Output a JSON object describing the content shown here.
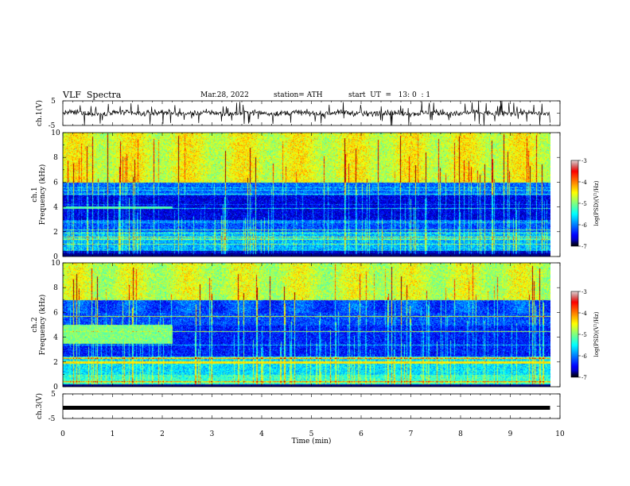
{
  "header": {
    "title": "VLF  Spectra",
    "date": "Mar.28, 2022",
    "station": "station= ATH",
    "start": "start  UT  =   13: 0  : 1"
  },
  "chart_data": [
    {
      "type": "line",
      "panel": "ch1-waveform",
      "ylabel": "ch.1(V)",
      "yticks": [
        "5",
        "-5"
      ],
      "ylim": [
        -5,
        5
      ],
      "xlim": [
        0,
        10
      ],
      "data_end_min": 9.8,
      "baseline_v": 0,
      "color": "#000000"
    },
    {
      "type": "heatmap",
      "panel": "ch1-spectrogram",
      "ylabel_line1": "ch.1",
      "ylabel_line2": "Frequency  (kHz)",
      "yticks": [
        "10",
        "8",
        "6",
        "4",
        "2",
        "0"
      ],
      "ylim": [
        0,
        10
      ],
      "xlim": [
        0,
        10
      ],
      "data_end_min": 9.8,
      "colorbar": {
        "label": "log(PSD)(V²/Hz)",
        "ticks": [
          "-3",
          "-4",
          "-5",
          "-6",
          "-7"
        ],
        "range": [
          -7,
          -3
        ]
      },
      "bands": [
        {
          "f_range": [
            6.0,
            10.0
          ],
          "log_psd": -4.6
        },
        {
          "f_range": [
            5.0,
            6.0
          ],
          "log_psd": -6.1
        },
        {
          "f_range": [
            3.0,
            5.0
          ],
          "log_psd": -6.6
        },
        {
          "f_range": [
            2.0,
            3.0
          ],
          "log_psd": -6.2
        },
        {
          "f_range": [
            0.5,
            2.0
          ],
          "log_psd": -5.8
        },
        {
          "f_range": [
            0.0,
            0.5
          ],
          "log_psd": -6.9
        }
      ],
      "features": [
        {
          "type": "narrowband",
          "f_khz": 4.0,
          "t_range": [
            0,
            2.2
          ],
          "log_psd": -5.2
        }
      ]
    },
    {
      "type": "heatmap",
      "panel": "ch2-spectrogram",
      "ylabel_line1": "ch.2",
      "ylabel_line2": "Frequency  (kHz)",
      "yticks": [
        "10",
        "8",
        "6",
        "4",
        "2",
        "0"
      ],
      "ylim": [
        0,
        10
      ],
      "xlim": [
        0,
        10
      ],
      "data_end_min": 9.8,
      "colorbar": {
        "label": "log(PSD)(V²/Hz)",
        "ticks": [
          "-3",
          "-4",
          "-5",
          "-6",
          "-7"
        ],
        "range": [
          -7,
          -3
        ]
      },
      "bands": [
        {
          "f_range": [
            7.0,
            10.0
          ],
          "log_psd": -4.7
        },
        {
          "f_range": [
            5.0,
            7.0
          ],
          "log_psd": -6.2
        },
        {
          "f_range": [
            2.5,
            5.0
          ],
          "log_psd": -6.4
        },
        {
          "f_range": [
            1.0,
            2.5
          ],
          "log_psd": -5.6
        },
        {
          "f_range": [
            0.0,
            1.0
          ],
          "log_psd": -5.3
        }
      ],
      "features": [
        {
          "type": "enhancement",
          "f_range": [
            3.5,
            5.0
          ],
          "t_range": [
            0,
            2.2
          ],
          "log_psd": -5.0
        },
        {
          "type": "narrowband",
          "f_khz": 2.0,
          "t_range": [
            0,
            9.8
          ],
          "log_psd": -4.4
        }
      ]
    },
    {
      "type": "line",
      "panel": "ch3-waveform",
      "ylabel": "ch.3(V)",
      "yticks": [
        "5",
        "-5"
      ],
      "ylim": [
        -5,
        5
      ],
      "xlim": [
        0,
        10
      ],
      "data_end_min": 9.8,
      "constant_v": 0,
      "color": "#000000"
    }
  ],
  "x_axis": {
    "label": "Time  (min)",
    "ticks": [
      "0",
      "1",
      "2",
      "3",
      "4",
      "5",
      "6",
      "7",
      "8",
      "9",
      "10"
    ]
  }
}
